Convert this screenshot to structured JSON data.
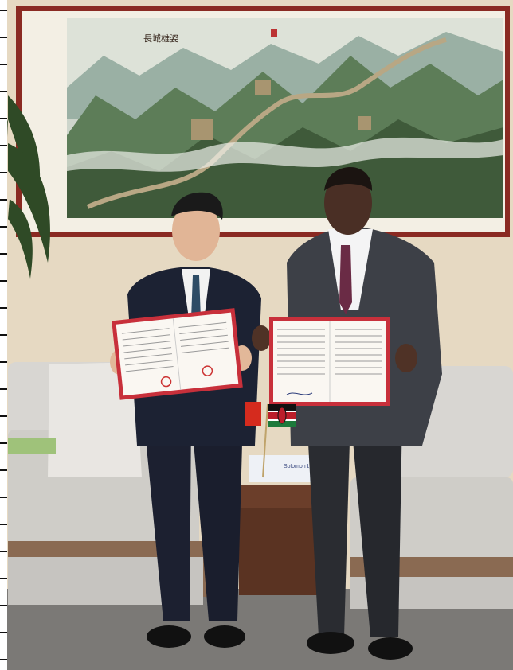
{
  "scene": {
    "description_alt": "Two men in suits holding signed documents in front of a Great Wall painting",
    "painting": {
      "seal_text": "長城雄姿"
    },
    "nameplate": {
      "text": "Solomon Letro Lenaiyasa"
    },
    "left_document": {
      "kind": "signed-letter",
      "language": "Chinese"
    },
    "right_document": {
      "kind": "signed-letter",
      "language": "Chinese/English"
    },
    "flags": [
      "kenya-flag",
      "china-flag"
    ]
  },
  "colors": {
    "wall": "#e8dcc6",
    "frame": "#8a2a22",
    "suit_dark": "#1c2233",
    "suit_grey": "#3d4047",
    "sofa": "#dcd9d3",
    "floor": "#7d7a76",
    "document_border": "#c82f3a"
  }
}
